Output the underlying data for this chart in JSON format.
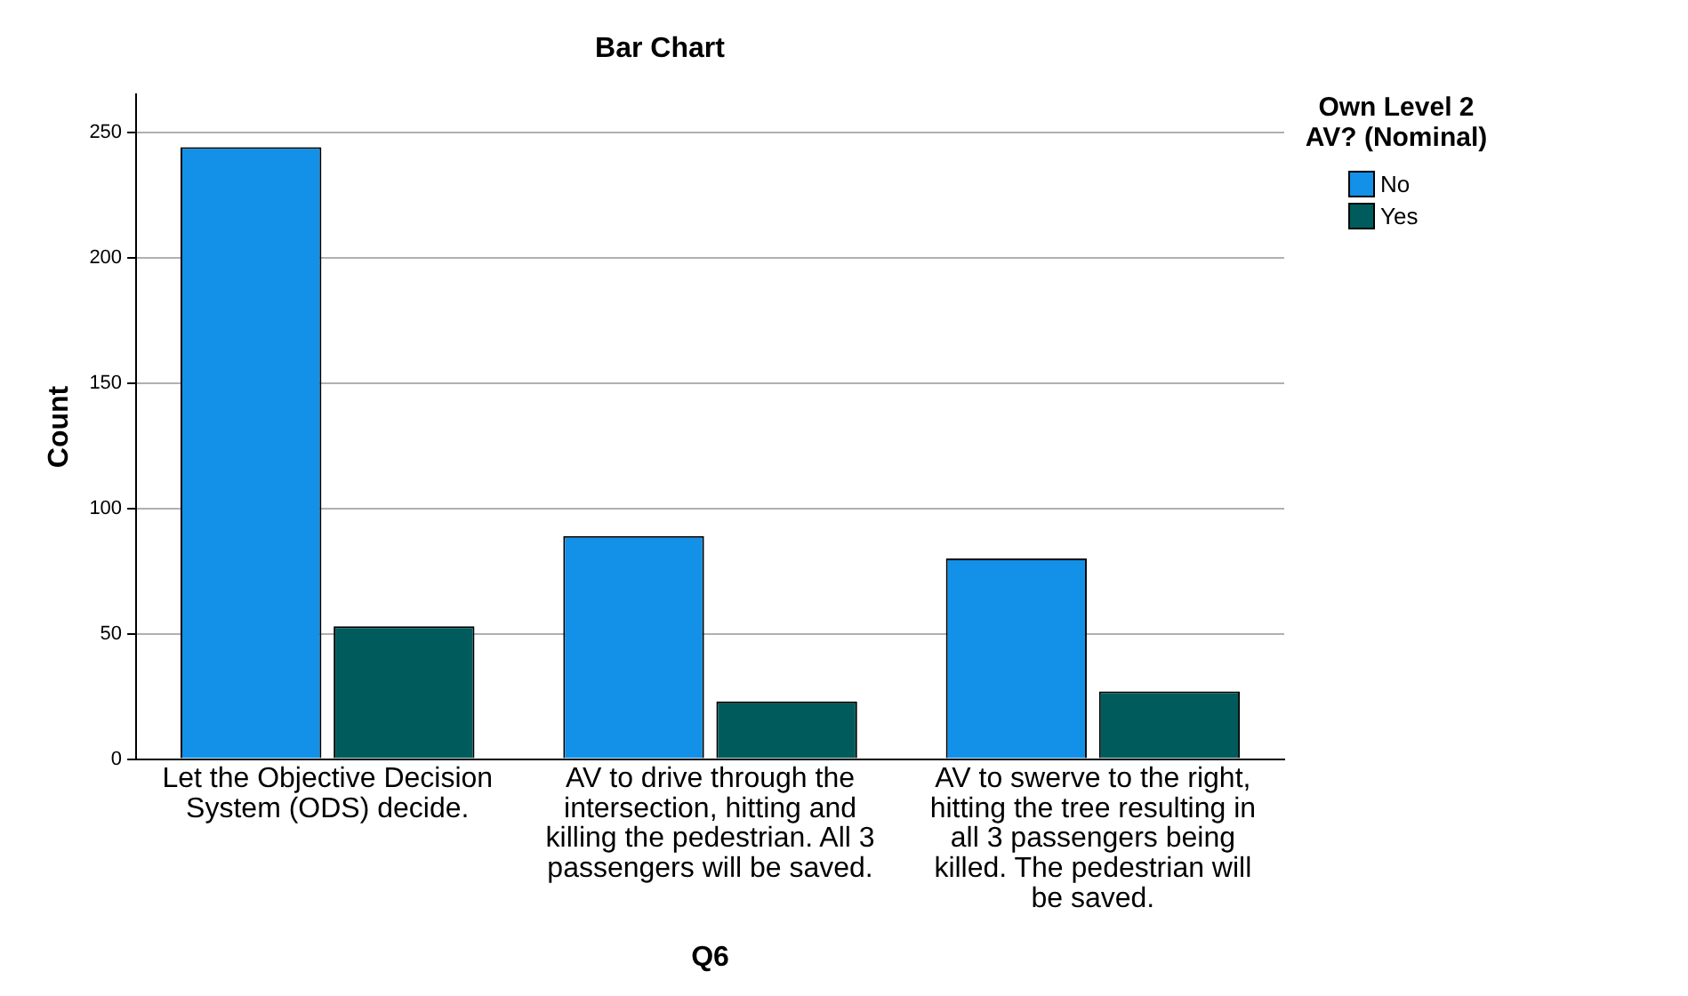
{
  "chart_data": {
    "type": "bar",
    "title": "Bar Chart",
    "xlabel": "Q6",
    "ylabel": "Count",
    "legend_title": "Own Level 2 AV? (Nominal)",
    "categories": [
      "Let the Objective Decision System (ODS) decide.",
      "AV to drive through the intersection, hitting and killing the pedestrian. All 3 passengers will be saved.",
      "AV to swerve to the right, hitting the tree resulting in all 3 passengers being killed. The pedestrian will be saved."
    ],
    "series": [
      {
        "name": "No",
        "color": "#1390e8",
        "values": [
          244,
          89,
          80
        ]
      },
      {
        "name": "Yes",
        "color": "#005c5c",
        "values": [
          53,
          23,
          27
        ]
      }
    ],
    "ylim": [
      0,
      265
    ],
    "yticks": [
      0,
      50,
      100,
      150,
      200,
      250
    ],
    "grid": "y",
    "legend": "right"
  }
}
